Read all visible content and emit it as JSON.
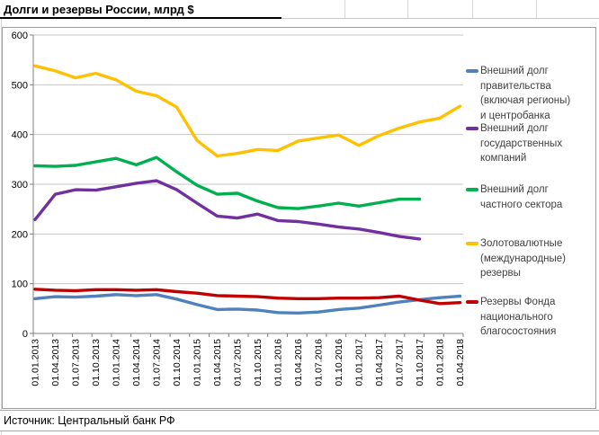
{
  "title": {
    "text": "Долги и резервы России, млрд $"
  },
  "source": {
    "text": "Источник: Центральный банк РФ"
  },
  "colors": {
    "gov_debt": "#4F81BD",
    "state_companies_debt": "#7030A0",
    "private_sector_debt": "#00B050",
    "reserves": "#FFC000",
    "nwf_reserves": "#C00000",
    "gridline": "#c6c6c6",
    "axis": "#808080",
    "tick_label": "#000000",
    "legend_text": "#404040"
  },
  "legend": {
    "items": [
      {
        "key": "gov-debt",
        "lines": [
          "Внешний долг",
          "правительства",
          "(включая регионы)",
          "и центробанка"
        ]
      },
      {
        "key": "state-companies-debt",
        "lines": [
          "Внешний долг",
          "государственных",
          "компаний"
        ]
      },
      {
        "key": "private-sector-debt",
        "lines": [
          "Внешний долг",
          "частного сектора"
        ]
      },
      {
        "key": "gold-fx-reserves",
        "lines": [
          "Золотовалютные",
          "(международные)",
          "резервы"
        ]
      },
      {
        "key": "nwf-reserves",
        "lines": [
          "Резервы Фонда",
          "национального",
          "благосостояния"
        ]
      }
    ]
  },
  "chart_data": {
    "type": "line",
    "title": "Долги и резервы России, млрд $",
    "units": "млрд $",
    "categories": [
      "01.01.2013",
      "01.04.2013",
      "01.07.2013",
      "01.10.2013",
      "01.01.2014",
      "01.04.2014",
      "01.07.2014",
      "01.10.2014",
      "01.01.2015",
      "01.04.2015",
      "01.07.2015",
      "01.10.2015",
      "01.01.2016",
      "01.04.2016",
      "01.07.2016",
      "01.10.2016",
      "01.01.2017",
      "01.04.2017",
      "01.07.2017",
      "01.10.2017",
      "01.01.2018",
      "01.04.2018"
    ],
    "series": [
      {
        "key": "gov-debt",
        "name": "Внешний долг правительства (включая регионы) и центробанка",
        "color": "#4F81BD",
        "values": [
          70,
          74,
          73,
          75,
          78,
          76,
          78,
          69,
          58,
          48,
          49,
          47,
          42,
          41,
          43,
          48,
          51,
          57,
          63,
          68,
          72,
          75
        ]
      },
      {
        "key": "state-companies-debt",
        "name": "Внешний долг государственных компаний",
        "color": "#7030A0",
        "values": [
          229,
          280,
          289,
          288,
          295,
          302,
          307,
          289,
          262,
          236,
          232,
          240,
          227,
          225,
          220,
          214,
          210,
          203,
          195,
          190,
          null,
          null
        ]
      },
      {
        "key": "private-sector-debt",
        "name": "Внешний долг частного сектора",
        "color": "#00B050",
        "values": [
          337,
          336,
          338,
          345,
          352,
          339,
          354,
          325,
          298,
          280,
          282,
          266,
          253,
          251,
          256,
          262,
          256,
          263,
          270,
          270,
          null,
          null
        ]
      },
      {
        "key": "gold-fx-reserves",
        "name": "Золотовалютные (международные) резервы",
        "color": "#FFC000",
        "values": [
          538,
          528,
          514,
          523,
          510,
          487,
          478,
          455,
          388,
          357,
          362,
          370,
          368,
          387,
          393,
          399,
          378,
          398,
          413,
          425,
          433,
          457
        ]
      },
      {
        "key": "nwf-reserves",
        "name": "Резервы Фонда национального благосостояния",
        "color": "#C00000",
        "values": [
          89,
          87,
          86,
          88,
          88,
          87,
          88,
          84,
          81,
          76,
          75,
          74,
          71,
          70,
          70,
          71,
          71,
          72,
          75,
          67,
          60,
          62
        ]
      }
    ],
    "ylim": [
      0,
      600
    ],
    "ytick_step": 100,
    "grid": true,
    "legend_position": "right",
    "x_label_rotation": 90
  }
}
